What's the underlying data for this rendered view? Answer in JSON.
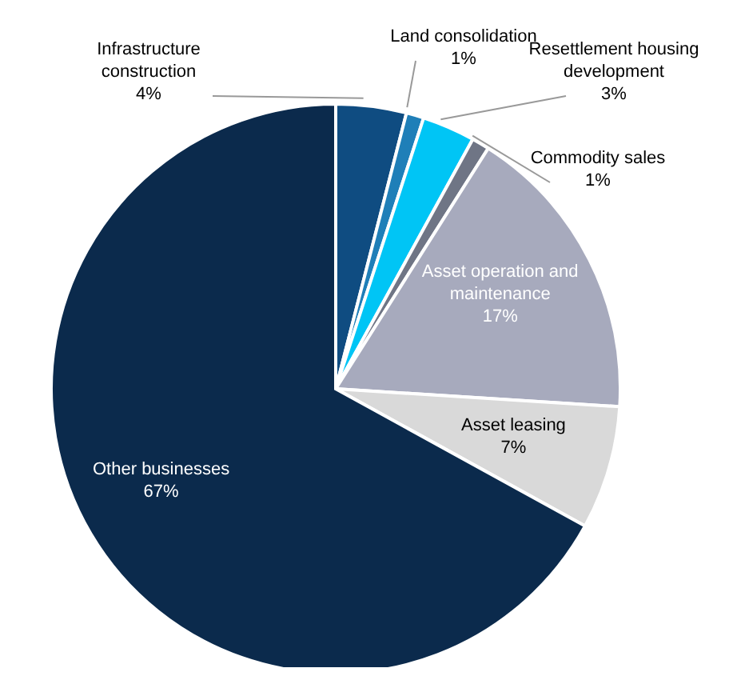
{
  "chart_data": {
    "type": "pie",
    "categories": [
      "Infrastructure construction",
      "Land consolidation",
      "Resettlement housing development",
      "Commodity sales",
      "Asset operation and maintenance",
      "Asset leasing",
      "Other businesses"
    ],
    "values": [
      4,
      1,
      3,
      1,
      17,
      7,
      67
    ],
    "value_labels": [
      "4%",
      "1%",
      "3%",
      "1%",
      "17%",
      "7%",
      "67%"
    ],
    "colors": [
      "#0f4c81",
      "#1f7fb8",
      "#00c5f5",
      "#6f7585",
      "#a7aabd",
      "#d9d9d9",
      "#0b2a4c"
    ],
    "legend": false
  }
}
